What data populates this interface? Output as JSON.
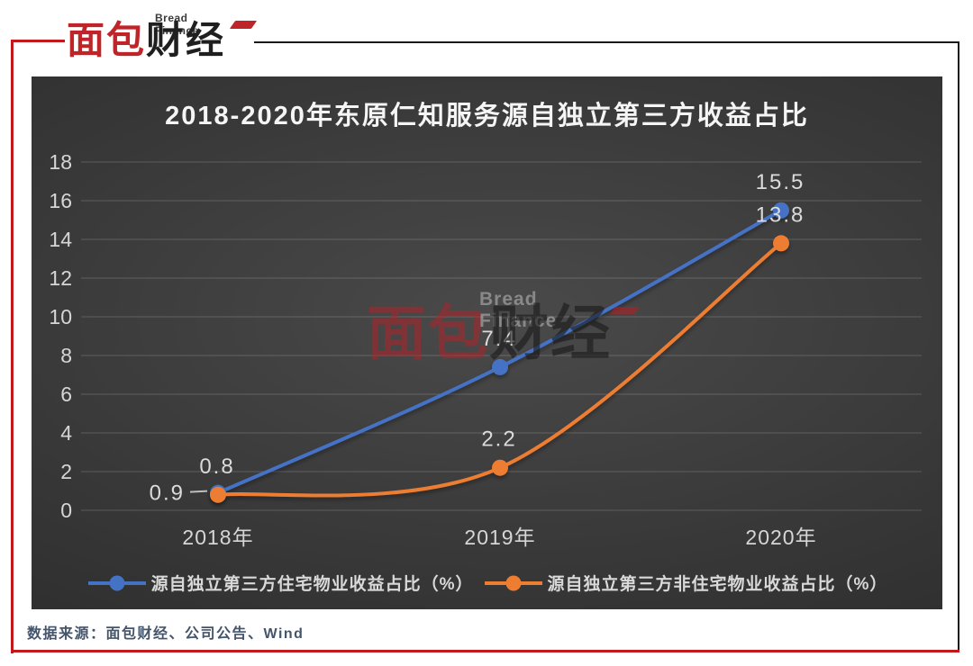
{
  "header_logo": {
    "brand_en": "Bread Finance",
    "brand_cn_red": "面包",
    "brand_cn_dark": "财经"
  },
  "chart_data": {
    "type": "line",
    "title": "2018-2020年东原仁知服务源自独立第三方收益占比",
    "categories": [
      "2018年",
      "2019年",
      "2020年"
    ],
    "series": [
      {
        "name": "源自独立第三方住宅物业收益占比（%）",
        "color": "#4472C4",
        "values": [
          0.9,
          7.4,
          15.5
        ],
        "label_placement": [
          "left",
          "above",
          "above"
        ]
      },
      {
        "name": "源自独立第三方非住宅物业收益占比（%）",
        "color": "#ED7D31",
        "values": [
          0.8,
          2.2,
          13.8
        ],
        "label_placement": [
          "above",
          "above",
          "above"
        ]
      }
    ],
    "ylim": [
      0,
      18
    ],
    "ytick_step": 2,
    "grid": true,
    "legend_position": "bottom",
    "data_labels": true,
    "colors": {
      "title": "#f5f5f5",
      "tick_label": "#d6d6d6",
      "data_label": "#dbdbdb",
      "gridline": "rgba(255,255,255,0.18)",
      "leader_line": "#bfbfbf"
    }
  },
  "watermark": {
    "brand_en": "Bread Finance",
    "cn_red": "面包",
    "cn_dark": "财经"
  },
  "footer": {
    "source_text": "数据来源：面包财经、公司公告、Wind"
  },
  "frame": {
    "red": "#c3181c",
    "black": "#1a1a1a",
    "logo_red": "#be2428",
    "logo_dark": "#1f1f1f"
  }
}
